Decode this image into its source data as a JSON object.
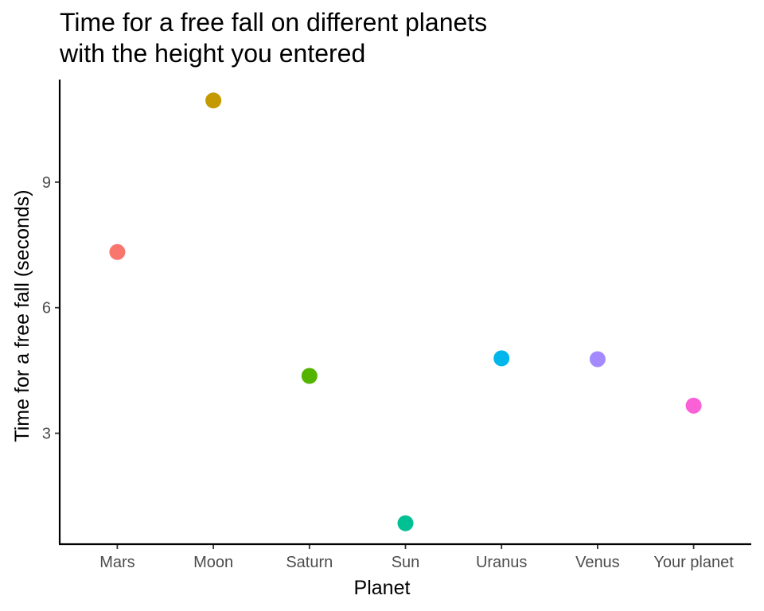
{
  "chart_data": {
    "type": "scatter",
    "title": [
      "Time for a free fall on different planets",
      "with the height you entered"
    ],
    "xlabel": "Planet",
    "ylabel": "Time for a free fall (seconds)",
    "categories": [
      "Mars",
      "Moon",
      "Saturn",
      "Sun",
      "Uranus",
      "Venus",
      "Your planet"
    ],
    "values": [
      7.33,
      10.95,
      4.37,
      0.85,
      4.79,
      4.77,
      3.66
    ],
    "colors": [
      "#F8766D",
      "#C49A00",
      "#53B400",
      "#00C094",
      "#00B6EB",
      "#A58AFF",
      "#FB61D7"
    ],
    "ylim": [
      0.35,
      11.45
    ],
    "yticks": [
      3,
      6,
      9
    ],
    "grid": false,
    "legend": "none"
  }
}
